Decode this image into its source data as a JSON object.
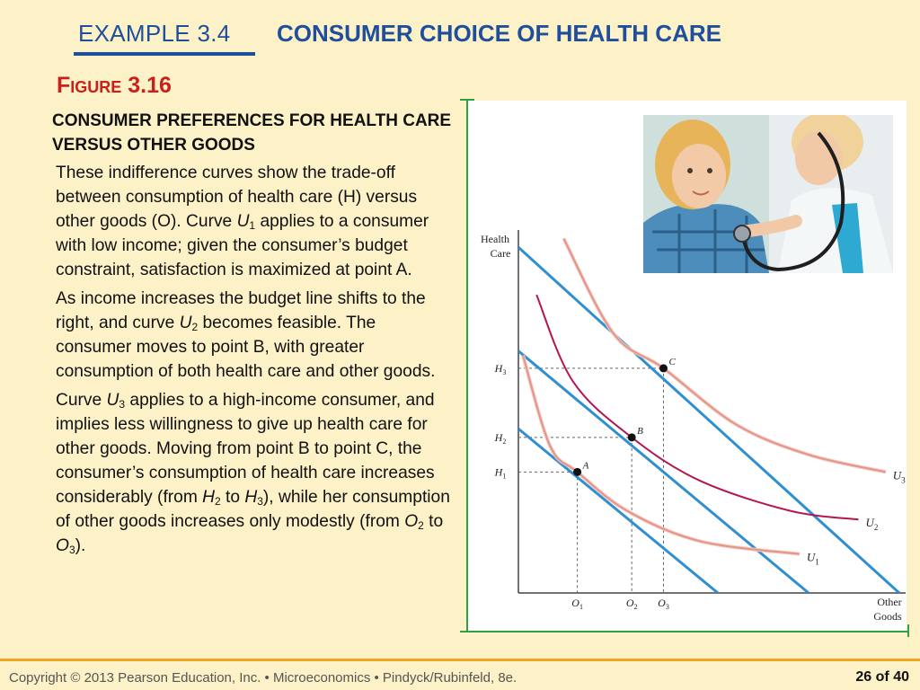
{
  "header": {
    "example_label": "EXAMPLE 3.4",
    "title": "CONSUMER CHOICE OF HEALTH CARE",
    "accent_color": "#1f4e9c"
  },
  "figure": {
    "label": "Figure 3.16",
    "caption": "CONSUMER PREFERENCES FOR HEALTH CARE VERSUS OTHER GOODS",
    "label_color": "#c8201b"
  },
  "body": {
    "p1": {
      "a": "These indifference curves show the trade-off between consumption of health care (H) versus other goods (O). Curve ",
      "u": "U",
      "sub": "1",
      "b": " applies to a consumer with low income; given the consumer’s budget constraint, satisfaction is maximized at point A."
    },
    "p2": {
      "a": "As income increases the budget line shifts to the right, and curve ",
      "u": "U",
      "sub": "2",
      "b": " becomes feasible. The consumer moves to point B, with greater consumption of both health care and other goods."
    },
    "p3": {
      "a": "Curve ",
      "u": "U",
      "sub": "3",
      "b": " applies to a high-income consumer, and implies less willingness to give up health care for other goods. Moving from point B to point C, the consumer’s consumption of health care increases considerably (from ",
      "h2": "H",
      "h2sub": "2",
      "to1": " to ",
      "h3": "H",
      "h3sub": "3",
      "c": "), while her consumption of other goods increases only modestly (from ",
      "o2": "O",
      "o2sub": "2",
      "to2": " to ",
      "o3": "O",
      "o3sub": "3",
      "d": ")."
    }
  },
  "photo": {
    "icon": "doctor-examining-child-photo"
  },
  "chart_data": {
    "type": "line",
    "xlabel": "Other Goods",
    "ylabel": "Health Care",
    "x_ticks": [
      {
        "main": "O",
        "sub": "1",
        "value": 0.65
      },
      {
        "main": "O",
        "sub": "2",
        "value": 1.25
      },
      {
        "main": "O",
        "sub": "3",
        "value": 1.6
      }
    ],
    "y_ticks": [
      {
        "main": "H",
        "sub": "1",
        "value": 1.4
      },
      {
        "main": "H",
        "sub": "2",
        "value": 1.8
      },
      {
        "main": "H",
        "sub": "3",
        "value": 2.6
      }
    ],
    "xlim": [
      0,
      4.3
    ],
    "ylim": [
      0,
      4.2
    ],
    "budget_lines": [
      {
        "x": [
          0,
          2.2
        ],
        "y": [
          1.9,
          0
        ]
      },
      {
        "x": [
          0,
          3.2
        ],
        "y": [
          2.8,
          0
        ]
      },
      {
        "x": [
          0,
          4.2
        ],
        "y": [
          4.0,
          0
        ]
      }
    ],
    "series": [
      {
        "name": "U1",
        "main": "U",
        "sub": "1",
        "color": "#e3958a",
        "points": [
          [
            0.05,
            2.75
          ],
          [
            0.35,
            1.7
          ],
          [
            0.65,
            1.4
          ],
          [
            1.2,
            0.95
          ],
          [
            2.0,
            0.6
          ],
          [
            3.1,
            0.45
          ]
        ]
      },
      {
        "name": "U2",
        "main": "U",
        "sub": "2",
        "color": "#b41650",
        "points": [
          [
            0.2,
            3.45
          ],
          [
            0.6,
            2.45
          ],
          [
            1.25,
            1.8
          ],
          [
            2.0,
            1.3
          ],
          [
            3.0,
            0.95
          ],
          [
            3.75,
            0.85
          ]
        ]
      },
      {
        "name": "U3",
        "main": "U",
        "sub": "3",
        "color": "#e3958a",
        "points": [
          [
            0.5,
            4.1
          ],
          [
            1.05,
            3.0
          ],
          [
            1.6,
            2.6
          ],
          [
            2.4,
            1.95
          ],
          [
            3.2,
            1.6
          ],
          [
            4.05,
            1.4
          ]
        ]
      }
    ],
    "points": [
      {
        "label": "A",
        "x": 0.65,
        "y": 1.4
      },
      {
        "label": "B",
        "x": 1.25,
        "y": 1.8
      },
      {
        "label": "C",
        "x": 1.6,
        "y": 2.6
      }
    ],
    "budget_color": "#2f8fd0"
  },
  "footer": {
    "copyright": "Copyright © 2013  Pearson Education, Inc. •  Microeconomics  •  Pindyck/Rubinfeld, 8e.",
    "page": "26 of 40"
  }
}
